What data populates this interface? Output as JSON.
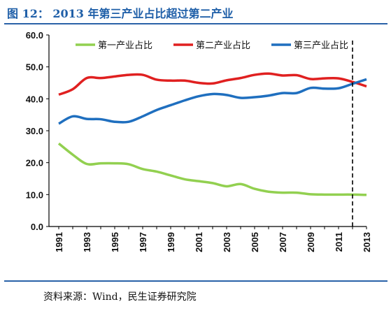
{
  "title": "图 12： 2013 年第三产业占比超过第二产业",
  "source": "资料来源：Wind，民生证券研究院",
  "chart_data": {
    "type": "line",
    "ylim": [
      0,
      60
    ],
    "yticks": [
      "0.0",
      "10.0",
      "20.0",
      "30.0",
      "40.0",
      "50.0",
      "60.0"
    ],
    "x": [
      1991,
      1992,
      1993,
      1994,
      1995,
      1996,
      1997,
      1998,
      1999,
      2000,
      2001,
      2002,
      2003,
      2004,
      2005,
      2006,
      2007,
      2008,
      2009,
      2010,
      2011,
      2012,
      2013
    ],
    "xticks": [
      "1991",
      "1993",
      "1995",
      "1997",
      "1999",
      "2001",
      "2003",
      "2005",
      "2007",
      "2009",
      "2011",
      "2013"
    ],
    "legend_position": "top",
    "grid": false,
    "vline_x": 2012,
    "series": [
      {
        "name": "第一产业占比",
        "color": "#92d050",
        "values": [
          26.0,
          22.5,
          19.6,
          19.8,
          19.8,
          19.5,
          18.0,
          17.2,
          16.0,
          14.8,
          14.2,
          13.6,
          12.6,
          13.3,
          11.8,
          10.9,
          10.6,
          10.6,
          10.1,
          10.0,
          10.0,
          10.0,
          9.9
        ]
      },
      {
        "name": "第二产业占比",
        "color": "#e02020",
        "values": [
          41.3,
          43.0,
          46.5,
          46.5,
          47.0,
          47.5,
          47.5,
          46.0,
          45.7,
          45.7,
          45.0,
          44.8,
          45.8,
          46.5,
          47.5,
          47.9,
          47.3,
          47.4,
          46.2,
          46.4,
          46.4,
          45.3,
          43.9
        ]
      },
      {
        "name": "第三产业占比",
        "color": "#1f6fbf",
        "values": [
          32.2,
          34.5,
          33.7,
          33.6,
          32.8,
          32.8,
          34.5,
          36.5,
          38.0,
          39.5,
          40.8,
          41.5,
          41.2,
          40.3,
          40.5,
          41.0,
          41.8,
          41.8,
          43.4,
          43.2,
          43.3,
          44.7,
          46.1
        ]
      }
    ]
  }
}
